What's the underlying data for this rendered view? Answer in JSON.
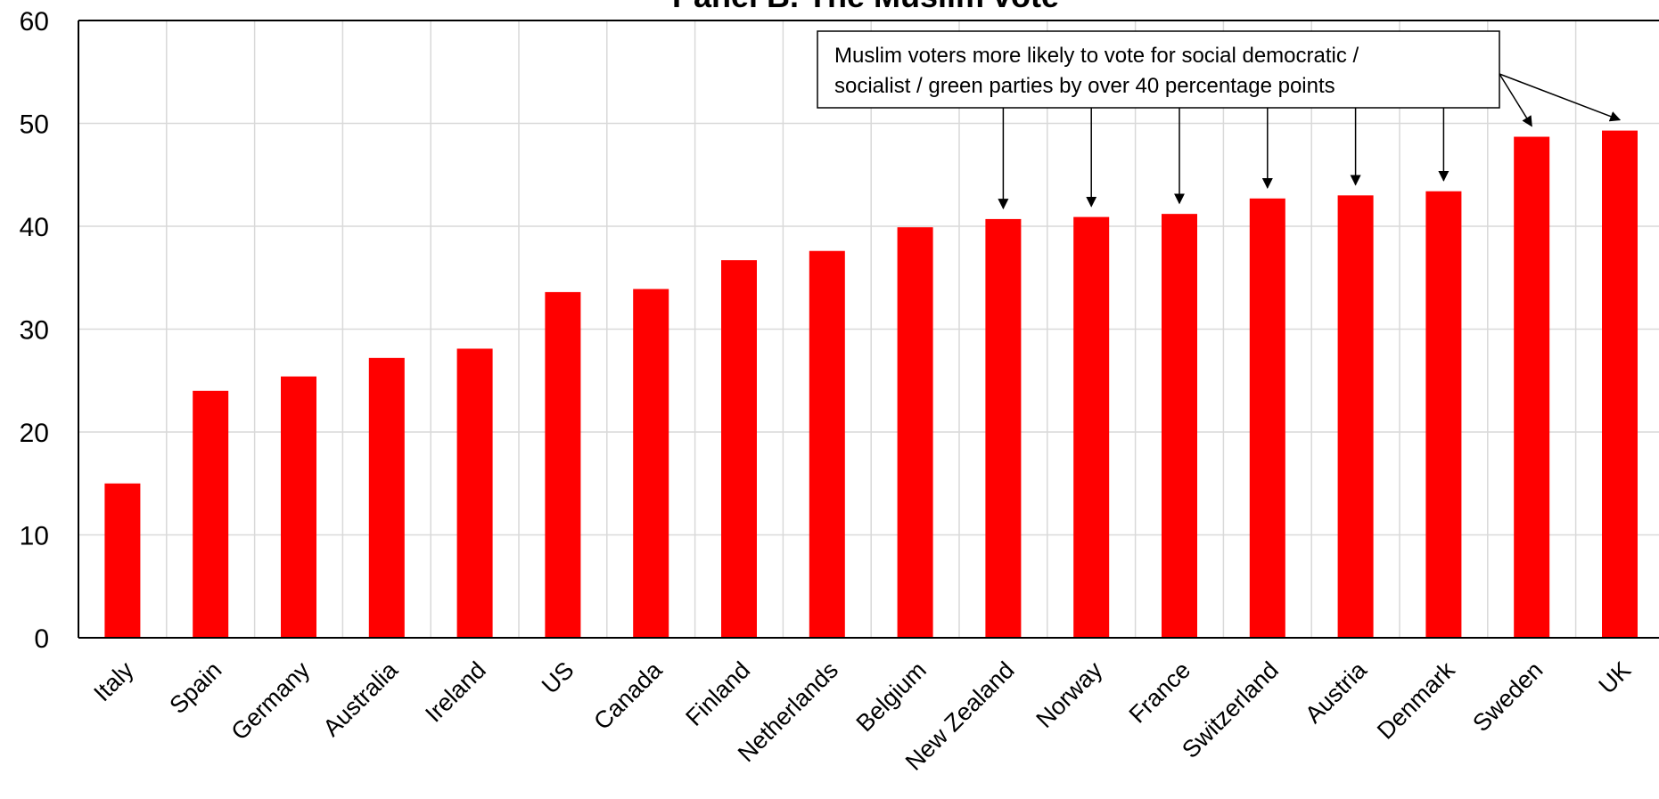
{
  "chart_data": {
    "type": "bar",
    "title": "Panel B. The Muslim vote",
    "xlabel": "",
    "ylabel": "",
    "ylim": [
      0,
      60
    ],
    "yticks": [
      0,
      10,
      20,
      30,
      40,
      50,
      60
    ],
    "grid": true,
    "categories": [
      "Italy",
      "Spain",
      "Germany",
      "Australia",
      "Ireland",
      "US",
      "Canada",
      "Finland",
      "Netherlands",
      "Belgium",
      "New Zealand",
      "Norway",
      "France",
      "Switzerland",
      "Austria",
      "Denmark",
      "Sweden",
      "UK"
    ],
    "values": [
      15,
      24,
      25.4,
      27.2,
      28.1,
      33.6,
      33.9,
      36.7,
      37.6,
      39.9,
      40.7,
      40.9,
      41.2,
      42.7,
      43.0,
      43.4,
      48.7,
      49.3
    ],
    "bar_color": "#ff0000",
    "annotation": {
      "lines": [
        "Muslim voters more likely to vote for social democratic /",
        "socialist / green parties by over 40 percentage points"
      ],
      "arrow_targets": [
        "New Zealand",
        "Norway",
        "France",
        "Switzerland",
        "Austria",
        "Denmark",
        "Sweden",
        "UK"
      ]
    }
  }
}
